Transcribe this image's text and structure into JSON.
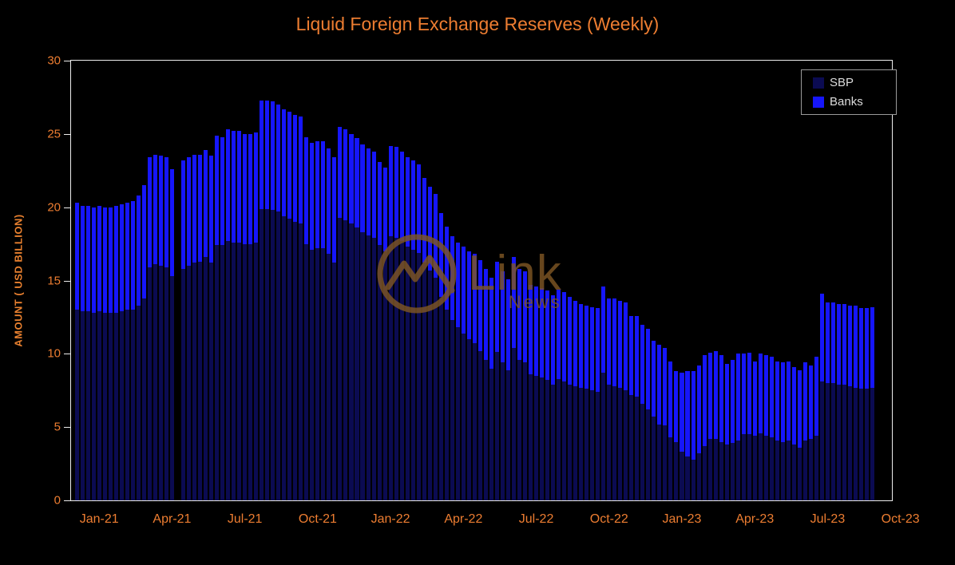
{
  "title": "Liquid Foreign Exchange Reserves (Weekly)",
  "watermark": {
    "brand": "Link",
    "sub": "News"
  },
  "colors": {
    "background": "#000000",
    "title_text": "#ED7D31",
    "axis_text": "#ED7D31",
    "axis_line": "#EDEDED",
    "sbp_bar": "#0B0B52",
    "banks_bar": "#1616FB",
    "legend_text": "#DCDCDC",
    "legend_border": "#9A9A9A",
    "watermark": "#7E5624"
  },
  "legend": {
    "items": [
      {
        "label": "SBP",
        "color": "#0B0B52"
      },
      {
        "label": "Banks",
        "color": "#1616FB"
      }
    ]
  },
  "chart_data": {
    "type": "bar",
    "stacked": true,
    "title": "Liquid Foreign Exchange Reserves (Weekly)",
    "ylabel": "AMOUNT ( USD BILLION)",
    "ylim": [
      0,
      30
    ],
    "y_ticks": [
      0,
      5,
      10,
      15,
      20,
      25,
      30
    ],
    "x_unit": "week",
    "x_tick_labels": [
      "Jan-21",
      "Apr-21",
      "Jul-21",
      "Oct-21",
      "Jan-22",
      "Apr-22",
      "Jul-22",
      "Oct-22",
      "Jan-23",
      "Apr-23",
      "Jul-23",
      "Oct-23"
    ],
    "x_tick_slots": [
      4,
      17,
      30,
      43,
      56,
      69,
      82,
      95,
      108,
      121,
      134,
      147
    ],
    "total_slots": 146.5,
    "missing_week_index": 18,
    "grid": false,
    "legend_position": "top-right",
    "series": [
      {
        "name": "SBP",
        "color": "#0B0B52",
        "values": [
          13.0,
          12.9,
          12.9,
          12.8,
          12.9,
          12.8,
          12.8,
          12.8,
          12.9,
          13.0,
          13.0,
          13.3,
          13.8,
          15.9,
          16.1,
          16.0,
          15.9,
          15.3,
          0,
          15.8,
          16.0,
          16.2,
          16.3,
          16.6,
          16.2,
          17.4,
          17.4,
          17.7,
          17.6,
          17.6,
          17.5,
          17.5,
          17.6,
          19.9,
          19.9,
          19.8,
          19.7,
          19.4,
          19.2,
          19.0,
          18.9,
          17.5,
          17.1,
          17.2,
          17.2,
          16.8,
          16.2,
          19.3,
          19.1,
          18.9,
          18.6,
          18.3,
          18.1,
          17.9,
          17.4,
          17.0,
          18.0,
          17.9,
          17.7,
          17.3,
          17.1,
          16.9,
          16.2,
          15.7,
          15.2,
          13.9,
          13.0,
          12.3,
          11.8,
          11.4,
          11.0,
          10.7,
          10.2,
          9.6,
          9.0,
          10.1,
          9.4,
          8.9,
          10.4,
          9.6,
          9.4,
          8.6,
          8.5,
          8.4,
          8.2,
          7.9,
          8.3,
          8.1,
          7.9,
          7.8,
          7.7,
          7.6,
          7.5,
          7.4,
          8.7,
          7.9,
          7.8,
          7.7,
          7.5,
          7.2,
          7.1,
          6.6,
          6.2,
          5.7,
          5.2,
          5.1,
          4.3,
          4.0,
          3.3,
          3.0,
          2.8,
          3.2,
          3.7,
          4.2,
          4.2,
          4.0,
          3.8,
          3.9,
          4.1,
          4.5,
          4.5,
          4.4,
          4.6,
          4.4,
          4.3,
          4.1,
          4.0,
          4.1,
          3.8,
          3.6,
          4.1,
          4.2,
          4.4,
          8.1,
          8.0,
          8.0,
          7.9,
          7.9,
          7.8,
          7.7,
          7.6,
          7.6,
          7.7
        ]
      },
      {
        "name": "Banks",
        "color": "#1616FB",
        "values": [
          7.3,
          7.2,
          7.2,
          7.2,
          7.2,
          7.2,
          7.2,
          7.3,
          7.3,
          7.3,
          7.4,
          7.5,
          7.7,
          7.5,
          7.5,
          7.5,
          7.5,
          7.3,
          0,
          7.4,
          7.4,
          7.4,
          7.3,
          7.3,
          7.3,
          7.5,
          7.4,
          7.6,
          7.6,
          7.6,
          7.5,
          7.5,
          7.5,
          7.4,
          7.4,
          7.4,
          7.3,
          7.3,
          7.3,
          7.3,
          7.3,
          7.3,
          7.3,
          7.3,
          7.3,
          7.2,
          7.2,
          6.2,
          6.2,
          6.1,
          6.1,
          6.0,
          5.9,
          5.9,
          5.7,
          5.7,
          6.2,
          6.2,
          6.1,
          6.1,
          6.1,
          6.0,
          5.8,
          5.7,
          5.7,
          5.7,
          5.7,
          5.7,
          5.8,
          5.9,
          6.0,
          6.1,
          6.2,
          6.2,
          6.2,
          6.2,
          6.2,
          6.2,
          6.2,
          6.2,
          6.2,
          6.1,
          6.1,
          6.1,
          6.1,
          6.1,
          6.1,
          6.1,
          6.0,
          5.8,
          5.7,
          5.7,
          5.7,
          5.7,
          5.9,
          5.9,
          6.0,
          5.9,
          6.0,
          5.4,
          5.5,
          5.4,
          5.5,
          5.2,
          5.4,
          5.3,
          5.2,
          4.8,
          5.4,
          5.8,
          6.0,
          6.0,
          6.2,
          5.9,
          6.0,
          5.9,
          5.5,
          5.7,
          5.9,
          5.5,
          5.6,
          5.1,
          5.4,
          5.5,
          5.5,
          5.4,
          5.4,
          5.4,
          5.3,
          5.3,
          5.3,
          5.0,
          5.4,
          6.0,
          5.5,
          5.5,
          5.5,
          5.5,
          5.5,
          5.6,
          5.5,
          5.5,
          5.5
        ]
      }
    ]
  }
}
